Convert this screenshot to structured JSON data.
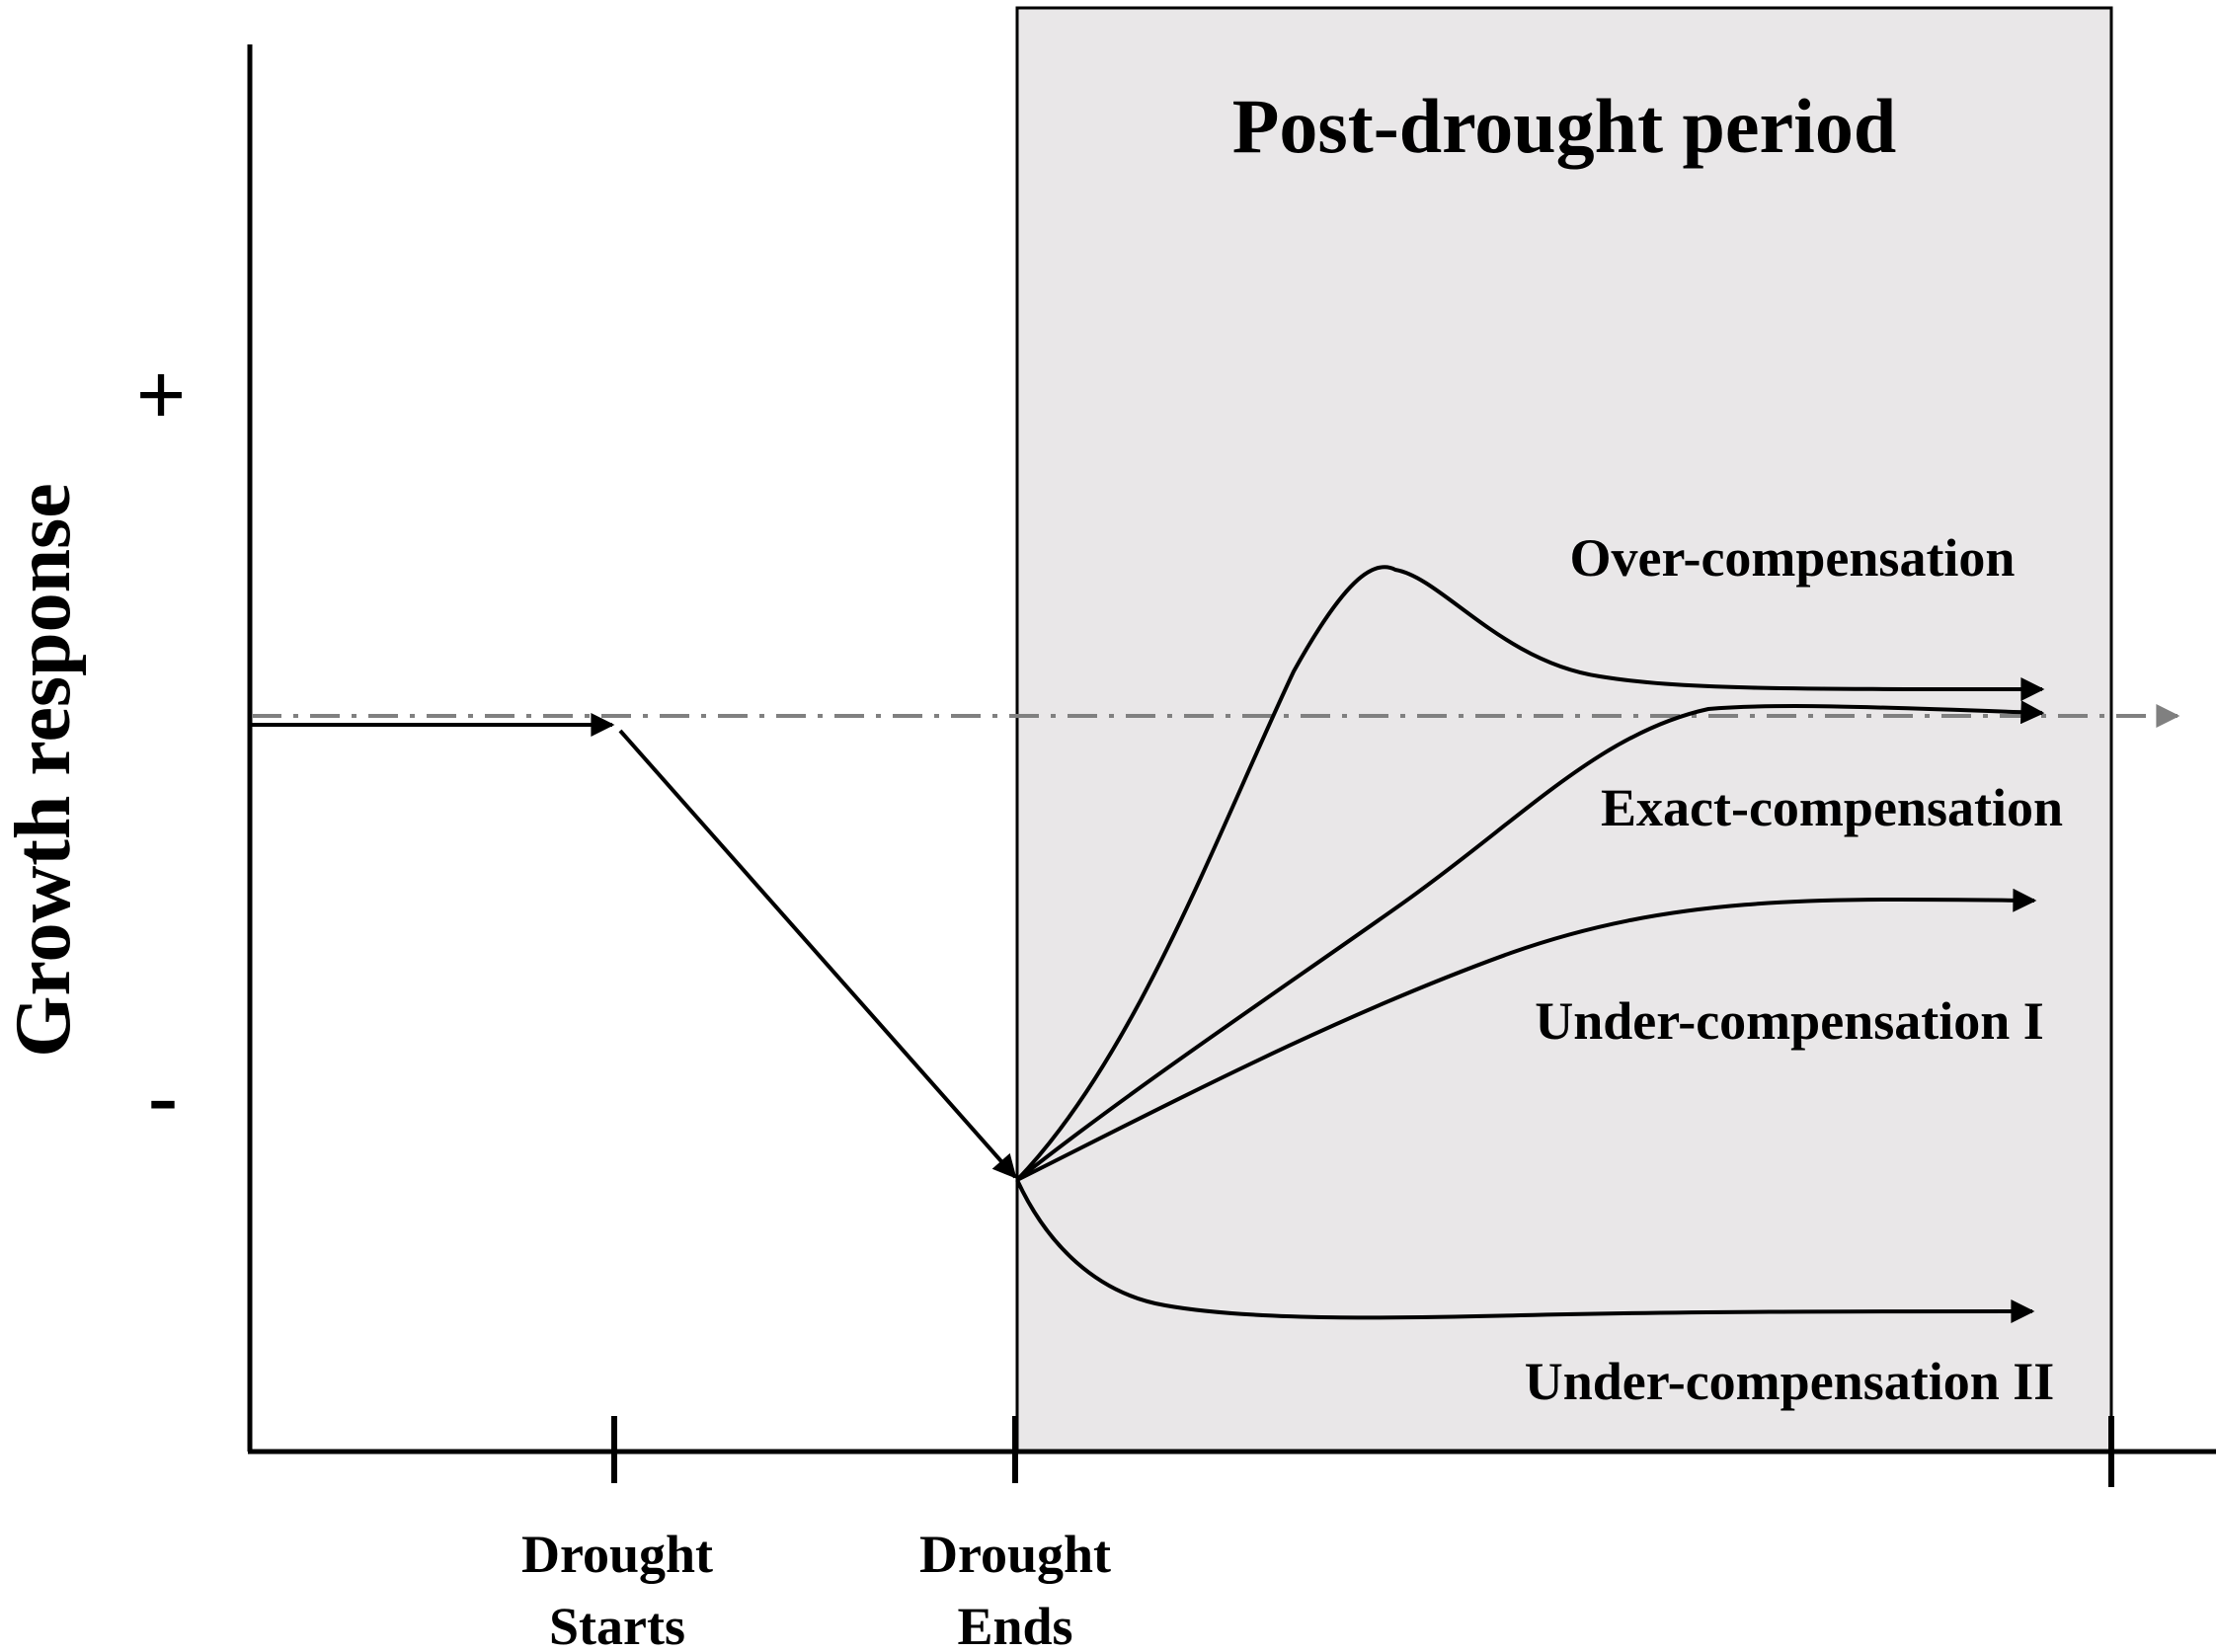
{
  "panel": {
    "title": "Post-drought period",
    "fill": "#e9e7e8"
  },
  "y_axis": {
    "label": "Growth response",
    "plus": "+",
    "minus": "-"
  },
  "x_ticks": [
    {
      "line1": "Drought",
      "line2": "Starts"
    },
    {
      "line1": "Drought",
      "line2": "Ends"
    }
  ],
  "curves": {
    "over": "Over-compensation",
    "exact": "Exact-compensation",
    "under1": "Under-compensation I",
    "under2": "Under-compensation II"
  },
  "colors": {
    "line": "#000000",
    "baseline": "#808080"
  }
}
